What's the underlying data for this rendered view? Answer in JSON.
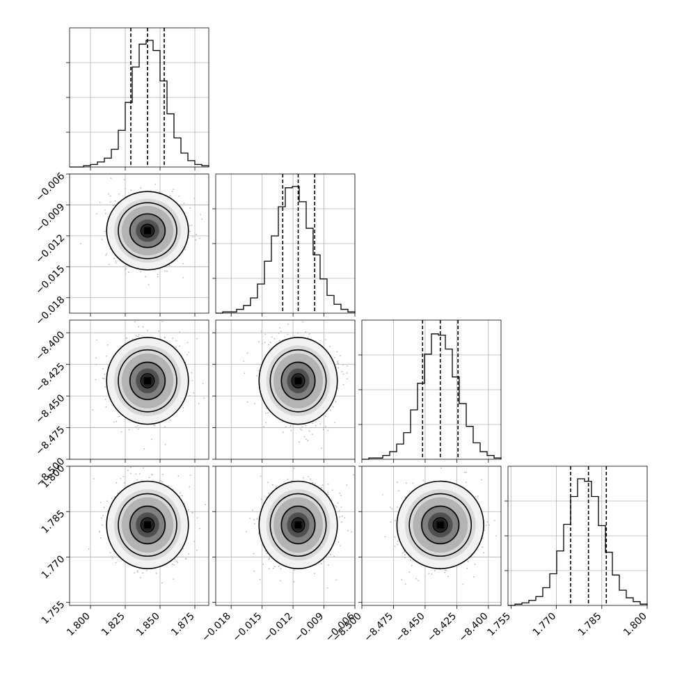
{
  "chart_data": {
    "type": "corner",
    "title": "",
    "params": [
      {
        "xlim": [
          1.785,
          1.885
        ],
        "ticks": [
          1.8,
          1.825,
          1.85,
          1.875
        ],
        "tick_labels": [
          "1.800",
          "1.825",
          "1.850",
          "1.875"
        ],
        "quantiles": [
          1.829,
          1.841,
          1.853
        ]
      },
      {
        "xlim": [
          -0.0195,
          -0.006
        ],
        "ticks": [
          -0.018,
          -0.015,
          -0.012,
          -0.009,
          -0.006
        ],
        "tick_labels": [
          "−0.018",
          "−0.015",
          "−0.012",
          "−0.009",
          "−0.006"
        ],
        "quantiles": [
          -0.013,
          -0.0115,
          -0.0099
        ]
      },
      {
        "xlim": [
          -8.5,
          -8.39
        ],
        "ticks": [
          -8.5,
          -8.475,
          -8.45,
          -8.425,
          -8.4
        ],
        "tick_labels": [
          "−8.500",
          "−8.475",
          "−8.450",
          "−8.425",
          "−8.400"
        ],
        "quantiles": [
          -8.452,
          -8.438,
          -8.424
        ]
      },
      {
        "xlim": [
          1.754,
          1.8
        ],
        "ticks": [
          1.755,
          1.77,
          1.785,
          1.8
        ],
        "tick_labels": [
          "1.755",
          "1.770",
          "1.785",
          "1.800"
        ],
        "quantiles": [
          1.7747,
          1.7806,
          1.7865
        ]
      }
    ],
    "histograms": [
      [
        0.0,
        0.0,
        0.01,
        0.02,
        0.04,
        0.07,
        0.14,
        0.29,
        0.51,
        0.79,
        0.97,
        1.0,
        0.92,
        0.68,
        0.42,
        0.23,
        0.11,
        0.05,
        0.02,
        0.01
      ],
      [
        0.0,
        0.01,
        0.01,
        0.03,
        0.06,
        0.12,
        0.23,
        0.41,
        0.61,
        0.84,
        0.99,
        1.0,
        0.88,
        0.67,
        0.46,
        0.27,
        0.14,
        0.07,
        0.03,
        0.01
      ],
      [
        0.0,
        0.01,
        0.01,
        0.03,
        0.06,
        0.12,
        0.21,
        0.39,
        0.6,
        0.83,
        0.99,
        0.98,
        0.87,
        0.65,
        0.44,
        0.26,
        0.13,
        0.06,
        0.03,
        0.01
      ],
      [
        0.0,
        0.01,
        0.02,
        0.04,
        0.07,
        0.14,
        0.25,
        0.43,
        0.64,
        0.86,
        1.0,
        0.98,
        0.86,
        0.63,
        0.42,
        0.24,
        0.12,
        0.06,
        0.03,
        0.01
      ]
    ],
    "grid": true,
    "contour_levels": 3
  }
}
